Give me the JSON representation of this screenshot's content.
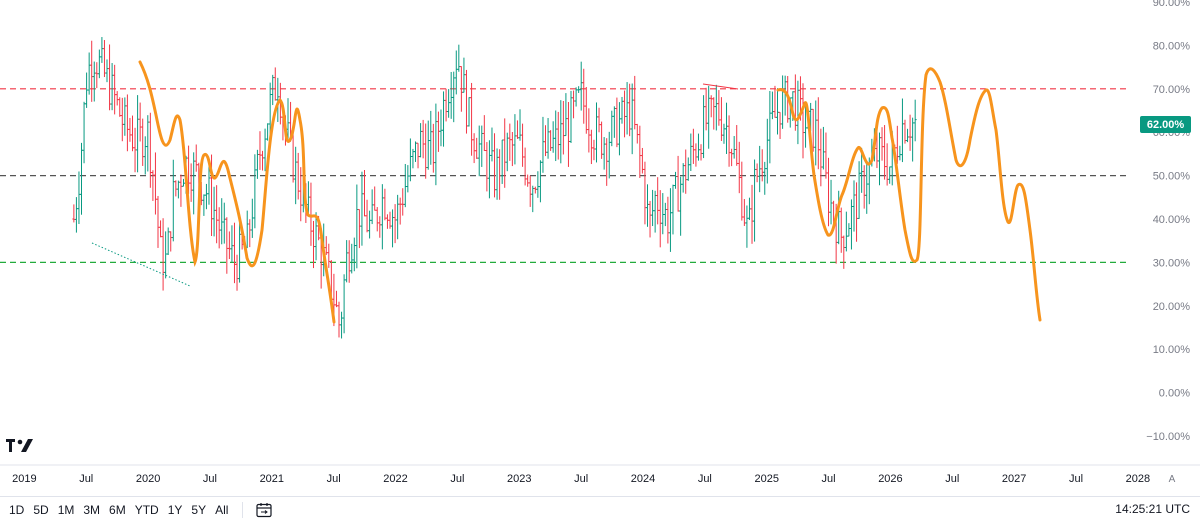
{
  "chart_data": {
    "type": "bar",
    "style": "ohlc-bars",
    "y_unit": "%",
    "ylim": [
      -10,
      90
    ],
    "y_ticks": [
      "90.00%",
      "80.00%",
      "70.00%",
      "60.00%",
      "50.00%",
      "40.00%",
      "30.00%",
      "20.00%",
      "10.00%",
      "0.00%",
      "−10.00%"
    ],
    "y_tick_values": [
      90,
      80,
      70,
      60,
      50,
      40,
      30,
      20,
      10,
      0,
      -10
    ],
    "x_ticks": [
      "2019",
      "Jul",
      "2020",
      "Jul",
      "2021",
      "Jul",
      "2022",
      "Jul",
      "2023",
      "Jul",
      "2024",
      "Jul",
      "2025",
      "Jul",
      "2026",
      "Jul",
      "2027",
      "Jul",
      "2028"
    ],
    "x_tick_values": [
      2019.0,
      2019.5,
      2020.0,
      2020.5,
      2021.0,
      2021.5,
      2022.0,
      2022.5,
      2023.0,
      2023.5,
      2024.0,
      2024.5,
      2025.0,
      2025.5,
      2026.0,
      2026.5,
      2027.0,
      2027.5,
      2028.0
    ],
    "xlim": [
      2018.9,
      2028.3
    ],
    "last_value": "62.00%",
    "horizontal_levels": [
      {
        "value": 70,
        "color": "#f23645",
        "style": "dashed"
      },
      {
        "value": 50,
        "color": "#555555",
        "style": "dashed"
      },
      {
        "value": 30,
        "color": "#22ab3c",
        "style": "dashed"
      }
    ],
    "bar_colors": {
      "up": "#089981",
      "down": "#f23645"
    },
    "series": [
      {
        "points": [
          [
            2019.4,
            40
          ],
          [
            2019.45,
            52
          ],
          [
            2019.5,
            72
          ],
          [
            2019.55,
            78
          ],
          [
            2019.6,
            76
          ],
          [
            2019.7,
            70
          ],
          [
            2019.8,
            62
          ],
          [
            2019.9,
            58
          ],
          [
            2020.0,
            60
          ],
          [
            2020.05,
            48
          ],
          [
            2020.1,
            32
          ],
          [
            2020.15,
            30
          ],
          [
            2020.2,
            45
          ],
          [
            2020.3,
            53
          ],
          [
            2020.4,
            50
          ],
          [
            2020.5,
            45
          ],
          [
            2020.6,
            36
          ],
          [
            2020.7,
            30
          ],
          [
            2020.8,
            34
          ],
          [
            2020.9,
            55
          ],
          [
            2021.0,
            68
          ],
          [
            2021.05,
            72
          ],
          [
            2021.1,
            62
          ],
          [
            2021.2,
            50
          ],
          [
            2021.3,
            40
          ],
          [
            2021.4,
            33
          ],
          [
            2021.5,
            22
          ],
          [
            2021.55,
            15
          ],
          [
            2021.6,
            30
          ],
          [
            2021.7,
            42
          ],
          [
            2021.8,
            38
          ],
          [
            2021.9,
            45
          ],
          [
            2022.0,
            40
          ],
          [
            2022.1,
            50
          ],
          [
            2022.2,
            58
          ],
          [
            2022.3,
            55
          ],
          [
            2022.4,
            68
          ],
          [
            2022.5,
            78
          ],
          [
            2022.6,
            62
          ],
          [
            2022.7,
            55
          ],
          [
            2022.8,
            50
          ],
          [
            2022.9,
            56
          ],
          [
            2023.0,
            57
          ],
          [
            2023.1,
            48
          ],
          [
            2023.2,
            55
          ],
          [
            2023.3,
            58
          ],
          [
            2023.4,
            62
          ],
          [
            2023.5,
            68
          ],
          [
            2023.6,
            60
          ],
          [
            2023.7,
            58
          ],
          [
            2023.8,
            62
          ],
          [
            2023.9,
            65
          ],
          [
            2024.0,
            50
          ],
          [
            2024.05,
            38
          ],
          [
            2024.1,
            45
          ],
          [
            2024.2,
            40
          ],
          [
            2024.3,
            48
          ],
          [
            2024.4,
            55
          ],
          [
            2024.5,
            62
          ],
          [
            2024.6,
            65
          ],
          [
            2024.7,
            60
          ],
          [
            2024.8,
            45
          ],
          [
            2024.85,
            36
          ],
          [
            2024.9,
            48
          ],
          [
            2025.0,
            58
          ],
          [
            2025.1,
            66
          ],
          [
            2025.2,
            68
          ],
          [
            2025.3,
            62
          ],
          [
            2025.4,
            60
          ],
          [
            2025.5,
            45
          ],
          [
            2025.6,
            36
          ],
          [
            2025.7,
            42
          ],
          [
            2025.8,
            50
          ],
          [
            2025.9,
            55
          ],
          [
            2026.0,
            52
          ],
          [
            2026.1,
            62
          ],
          [
            2026.2,
            62
          ]
        ]
      }
    ]
  },
  "toolbar": {
    "ranges": [
      "1D",
      "5D",
      "1M",
      "3M",
      "6M",
      "YTD",
      "1Y",
      "5Y",
      "All"
    ],
    "time": "14:25:21 UTC",
    "auto_label": "A"
  },
  "colors": {
    "projection": "#f7941d",
    "grid_text": "#787b86"
  }
}
